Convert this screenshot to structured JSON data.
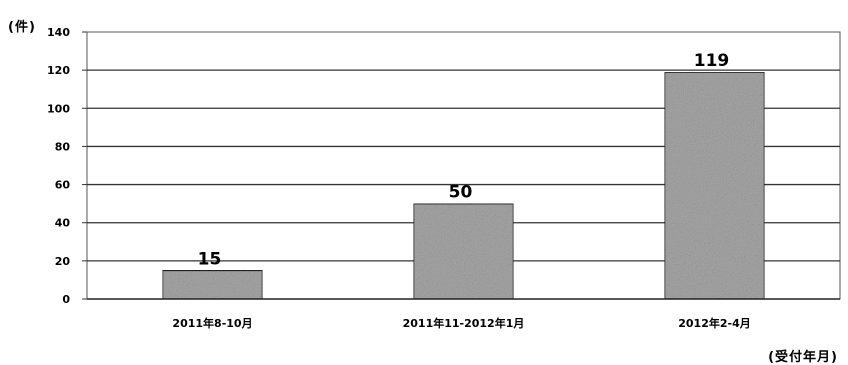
{
  "chart_data": {
    "type": "bar",
    "categories": [
      "2011年8-10月",
      "2011年11-2012年1月",
      "2012年2-4月"
    ],
    "values": [
      15,
      50,
      119
    ],
    "data_labels": [
      "15",
      "50",
      "119"
    ],
    "y_unit_label": "(件)",
    "x_unit_label": "(受付年月)",
    "ylim": [
      0,
      140
    ],
    "y_ticks": [
      0,
      20,
      40,
      60,
      80,
      100,
      120,
      140
    ],
    "grid": true,
    "legend": "none",
    "bar_fill": "#a8a8a8",
    "bar_stroke": "#222222"
  }
}
